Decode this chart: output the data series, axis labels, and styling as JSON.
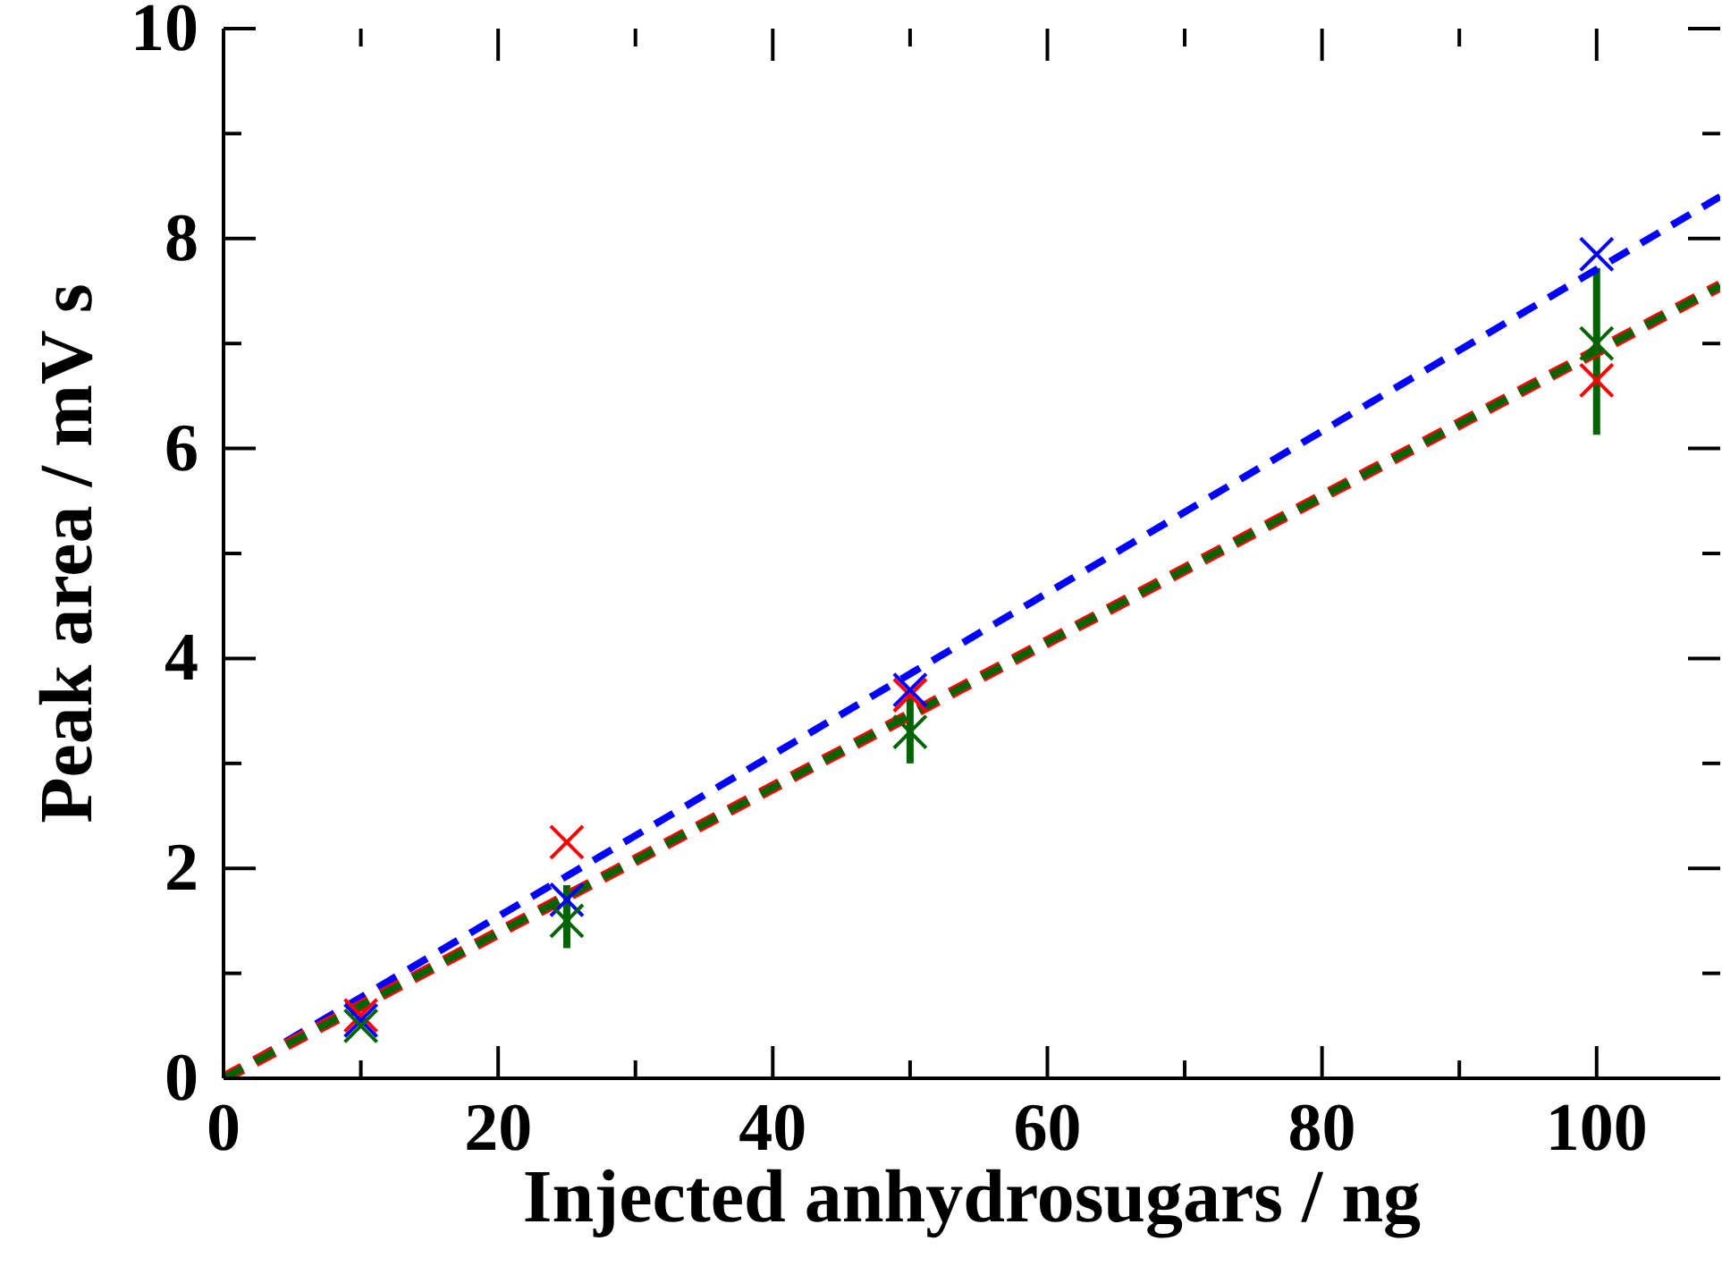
{
  "chart_data": {
    "type": "scatter",
    "xlabel": "Injected anhydrosugars / ng",
    "ylabel": "Peak area / mV s",
    "xlim": [
      0,
      109
    ],
    "ylim": [
      0,
      10
    ],
    "xticks": [
      0,
      {
        "value": 10,
        "label": null
      },
      20,
      {
        "value": 30,
        "label": null
      },
      40,
      {
        "value": 50,
        "label": null
      },
      60,
      {
        "value": 70,
        "label": null
      },
      80,
      {
        "value": 90,
        "label": null
      },
      100
    ],
    "yticks": [
      0,
      {
        "value": 1,
        "label": null
      },
      2,
      {
        "value": 3,
        "label": null
      },
      4,
      {
        "value": 5,
        "label": null
      },
      6,
      {
        "value": 7,
        "label": null
      },
      8,
      {
        "value": 9,
        "label": null
      },
      10
    ],
    "grid": false,
    "legend": false,
    "marker": "cross",
    "series": [
      {
        "color": "#ff0000",
        "x": [
          10,
          25,
          50,
          100
        ],
        "values": [
          0.6,
          2.25,
          3.65,
          6.65
        ]
      },
      {
        "color": "#0000ff",
        "x": [
          10,
          25,
          50,
          100
        ],
        "values": [
          0.55,
          1.7,
          3.7,
          7.85
        ]
      },
      {
        "color": "#006400",
        "x": [
          10,
          25,
          50,
          100
        ],
        "values": [
          0.5,
          1.5,
          3.3,
          7.0
        ],
        "errors": [
          null,
          [
            1.24,
            1.84
          ],
          [
            3.0,
            3.68
          ],
          [
            6.13,
            7.72
          ]
        ]
      },
      {
        "type": "line",
        "color": "#0000ff",
        "x": [
          0,
          109
        ],
        "values": [
          0,
          8.4
        ],
        "line_style": "dashed",
        "marker": "none"
      },
      {
        "type": "line",
        "color": "#ff0000",
        "x": [
          0,
          109
        ],
        "values": [
          0,
          7.55
        ],
        "line_style": "dashed",
        "marker": "none"
      },
      {
        "type": "line",
        "color": "#006400",
        "x": [
          0,
          109
        ],
        "values": [
          0,
          7.55
        ],
        "line_style": "dashed",
        "marker": "none"
      }
    ]
  }
}
